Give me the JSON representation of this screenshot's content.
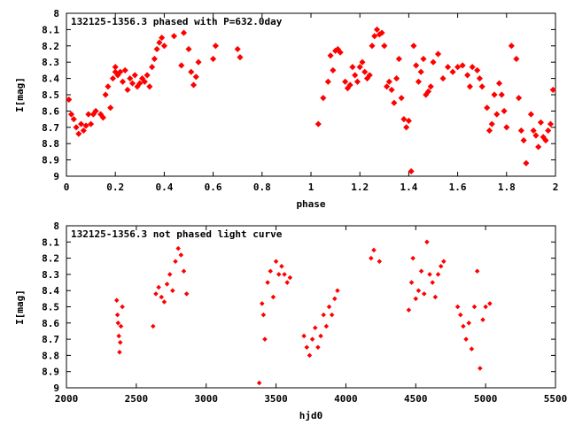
{
  "colors": {
    "points": "#ff0000",
    "axes": "#000000",
    "background": "#ffffff"
  },
  "chart_data": [
    {
      "type": "scatter",
      "title": "132125-1356.3 phased with P=632.0day",
      "xlabel": "phase",
      "ylabel": "I[mag]",
      "xlim": [
        0,
        2
      ],
      "ylim": [
        8,
        9
      ],
      "y_inverted": true,
      "grid": false,
      "legend": "none",
      "xticks": [
        "0",
        "0.2",
        "0.4",
        "0.6",
        "0.8",
        "1",
        "1.2",
        "1.4",
        "1.6",
        "1.8",
        "2"
      ],
      "yticks": [
        "8",
        "8.1",
        "8.2",
        "8.3",
        "8.4",
        "8.5",
        "8.6",
        "8.7",
        "8.8",
        "8.9",
        "9"
      ],
      "series": [
        {
          "x": [
            0.01,
            0.02,
            0.03,
            0.04,
            0.05,
            0.06,
            0.07,
            0.08,
            0.09,
            0.1,
            0.11,
            0.12,
            0.14,
            0.15,
            0.16,
            0.17,
            0.18,
            0.19,
            0.2,
            0.2,
            0.21,
            0.22,
            0.23,
            0.24,
            0.25,
            0.26,
            0.27,
            0.28,
            0.29,
            0.3,
            0.31,
            0.32,
            0.33,
            0.34,
            0.35,
            0.36,
            0.37,
            0.38,
            0.39,
            0.4,
            0.44,
            0.47,
            0.48,
            0.5,
            0.51,
            0.52,
            0.53,
            0.54,
            0.6,
            0.61,
            0.7,
            0.71,
            1.03,
            1.05,
            1.07,
            1.08,
            1.09,
            1.1,
            1.11,
            1.12,
            1.14,
            1.15,
            1.16,
            1.17,
            1.18,
            1.19,
            1.2,
            1.21,
            1.22,
            1.23,
            1.24,
            1.25,
            1.26,
            1.27,
            1.28,
            1.29,
            1.3,
            1.31,
            1.32,
            1.33,
            1.34,
            1.35,
            1.36,
            1.37,
            1.38,
            1.39,
            1.4,
            1.41,
            1.42,
            1.43,
            1.44,
            1.45,
            1.46,
            1.47,
            1.48,
            1.49,
            1.5,
            1.52,
            1.54,
            1.56,
            1.58,
            1.6,
            1.62,
            1.64,
            1.65,
            1.66,
            1.68,
            1.69,
            1.7,
            1.72,
            1.73,
            1.74,
            1.75,
            1.76,
            1.77,
            1.78,
            1.79,
            1.8,
            1.82,
            1.84,
            1.85,
            1.86,
            1.87,
            1.88,
            1.9,
            1.91,
            1.92,
            1.93,
            1.94,
            1.95,
            1.96,
            1.97,
            1.98,
            1.99
          ],
          "y": [
            8.53,
            8.62,
            8.65,
            8.7,
            8.74,
            8.68,
            8.72,
            8.69,
            8.62,
            8.68,
            8.62,
            8.6,
            8.62,
            8.64,
            8.5,
            8.45,
            8.58,
            8.4,
            8.36,
            8.33,
            8.38,
            8.36,
            8.42,
            8.35,
            8.47,
            8.4,
            8.43,
            8.38,
            8.45,
            8.43,
            8.4,
            8.42,
            8.38,
            8.45,
            8.33,
            8.28,
            8.22,
            8.18,
            8.15,
            8.2,
            8.14,
            8.32,
            8.12,
            8.22,
            8.36,
            8.44,
            8.39,
            8.3,
            8.28,
            8.2,
            8.22,
            8.27,
            8.68,
            8.52,
            8.42,
            8.26,
            8.35,
            8.23,
            8.22,
            8.24,
            8.42,
            8.46,
            8.44,
            8.33,
            8.38,
            8.42,
            8.33,
            8.3,
            8.36,
            8.4,
            8.38,
            8.2,
            8.14,
            8.1,
            8.13,
            8.12,
            8.2,
            8.45,
            8.42,
            8.47,
            8.55,
            8.4,
            8.28,
            8.52,
            8.65,
            8.7,
            8.66,
            8.97,
            8.2,
            8.32,
            8.42,
            8.36,
            8.28,
            8.5,
            8.48,
            8.45,
            8.3,
            8.25,
            8.4,
            8.33,
            8.36,
            8.33,
            8.32,
            8.38,
            8.45,
            8.33,
            8.35,
            8.4,
            8.45,
            8.58,
            8.72,
            8.68,
            8.5,
            8.62,
            8.43,
            8.5,
            8.6,
            8.7,
            8.2,
            8.28,
            8.52,
            8.72,
            8.78,
            8.92,
            8.62,
            8.72,
            8.75,
            8.82,
            8.67,
            8.76,
            8.78,
            8.72,
            8.68,
            8.47
          ]
        }
      ]
    },
    {
      "type": "scatter",
      "title": "132125-1356.3 not phased light curve",
      "xlabel": "hjd0",
      "ylabel": "I[mag]",
      "xlim": [
        2000,
        5500
      ],
      "ylim": [
        8,
        9
      ],
      "y_inverted": true,
      "grid": false,
      "legend": "none",
      "xticks": [
        "2000",
        "2500",
        "3000",
        "3500",
        "4000",
        "4500",
        "5000",
        "5500"
      ],
      "yticks": [
        "8",
        "8.1",
        "8.2",
        "8.3",
        "8.4",
        "8.5",
        "8.6",
        "8.7",
        "8.8",
        "8.9",
        "9"
      ],
      "series": [
        {
          "x": [
            2360,
            2365,
            2370,
            2375,
            2380,
            2385,
            2390,
            2400,
            2620,
            2640,
            2660,
            2680,
            2700,
            2720,
            2740,
            2760,
            2780,
            2800,
            2820,
            2840,
            2860,
            3380,
            3400,
            3410,
            3420,
            3440,
            3460,
            3480,
            3500,
            3520,
            3540,
            3560,
            3580,
            3600,
            3700,
            3720,
            3740,
            3760,
            3780,
            3800,
            3820,
            3840,
            3860,
            3880,
            3900,
            3920,
            3940,
            4180,
            4200,
            4240,
            4450,
            4470,
            4480,
            4500,
            4520,
            4540,
            4560,
            4580,
            4600,
            4620,
            4640,
            4660,
            4680,
            4700,
            4800,
            4820,
            4840,
            4860,
            4880,
            4900,
            4920,
            4940,
            4960,
            4980,
            5000,
            5030
          ],
          "y": [
            8.46,
            8.55,
            8.6,
            8.68,
            8.78,
            8.72,
            8.62,
            8.5,
            8.62,
            8.42,
            8.38,
            8.44,
            8.47,
            8.36,
            8.3,
            8.4,
            8.22,
            8.14,
            8.18,
            8.28,
            8.42,
            8.97,
            8.48,
            8.55,
            8.7,
            8.35,
            8.28,
            8.44,
            8.22,
            8.3,
            8.25,
            8.3,
            8.35,
            8.32,
            8.68,
            8.75,
            8.8,
            8.7,
            8.63,
            8.75,
            8.68,
            8.55,
            8.62,
            8.5,
            8.55,
            8.45,
            8.4,
            8.2,
            8.15,
            8.22,
            8.52,
            8.35,
            8.2,
            8.45,
            8.4,
            8.28,
            8.42,
            8.1,
            8.3,
            8.35,
            8.44,
            8.3,
            8.25,
            8.22,
            8.5,
            8.55,
            8.62,
            8.7,
            8.6,
            8.76,
            8.5,
            8.28,
            8.88,
            8.58,
            8.5,
            8.48
          ]
        }
      ]
    }
  ]
}
